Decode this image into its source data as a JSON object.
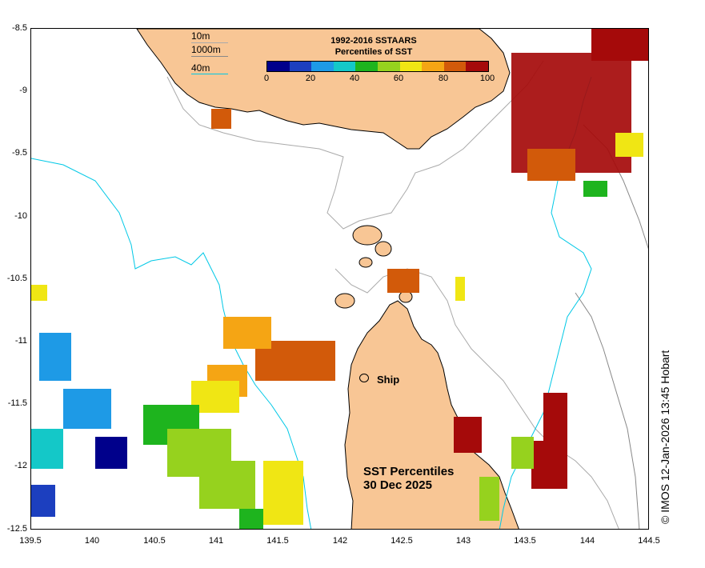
{
  "legend": {
    "title_line1": "1992-2016 SSTAARS",
    "title_line2": "Percentiles of SST",
    "ticks": [
      "0",
      "20",
      "40",
      "60",
      "80",
      "100"
    ],
    "colors": [
      "#00008b",
      "#1c3fbf",
      "#1e9ae6",
      "#14c8c8",
      "#1eb41e",
      "#96d21e",
      "#f0e614",
      "#f5a514",
      "#d25a0a",
      "#a50a0a"
    ]
  },
  "contour_key": {
    "items": [
      "10m",
      "1000m",
      "40m"
    ],
    "colors": [
      "#aaaaaa",
      "#888888",
      "#00c8e6"
    ]
  },
  "ship": {
    "label": "Ship"
  },
  "map_title": {
    "line1": "SST Percentiles",
    "line2": "30 Dec 2025"
  },
  "credit": "© IMOS 12-Jan-2026 13:45 Hobart",
  "axes": {
    "y_labels": [
      "-8.5",
      "-9",
      "-9.5",
      "-10",
      "-10.5",
      "-11",
      "-11.5",
      "-12",
      "-12.5"
    ],
    "x_labels": [
      "139.5",
      "140",
      "140.5",
      "141",
      "141.5",
      "142",
      "142.5",
      "143",
      "143.5",
      "144",
      "144.5"
    ],
    "lat_range": [
      -12.5,
      -8.5
    ],
    "lon_range": [
      139.5,
      144.5
    ]
  },
  "land_color": "#f8c695",
  "ocean_color": "#ffffff"
}
